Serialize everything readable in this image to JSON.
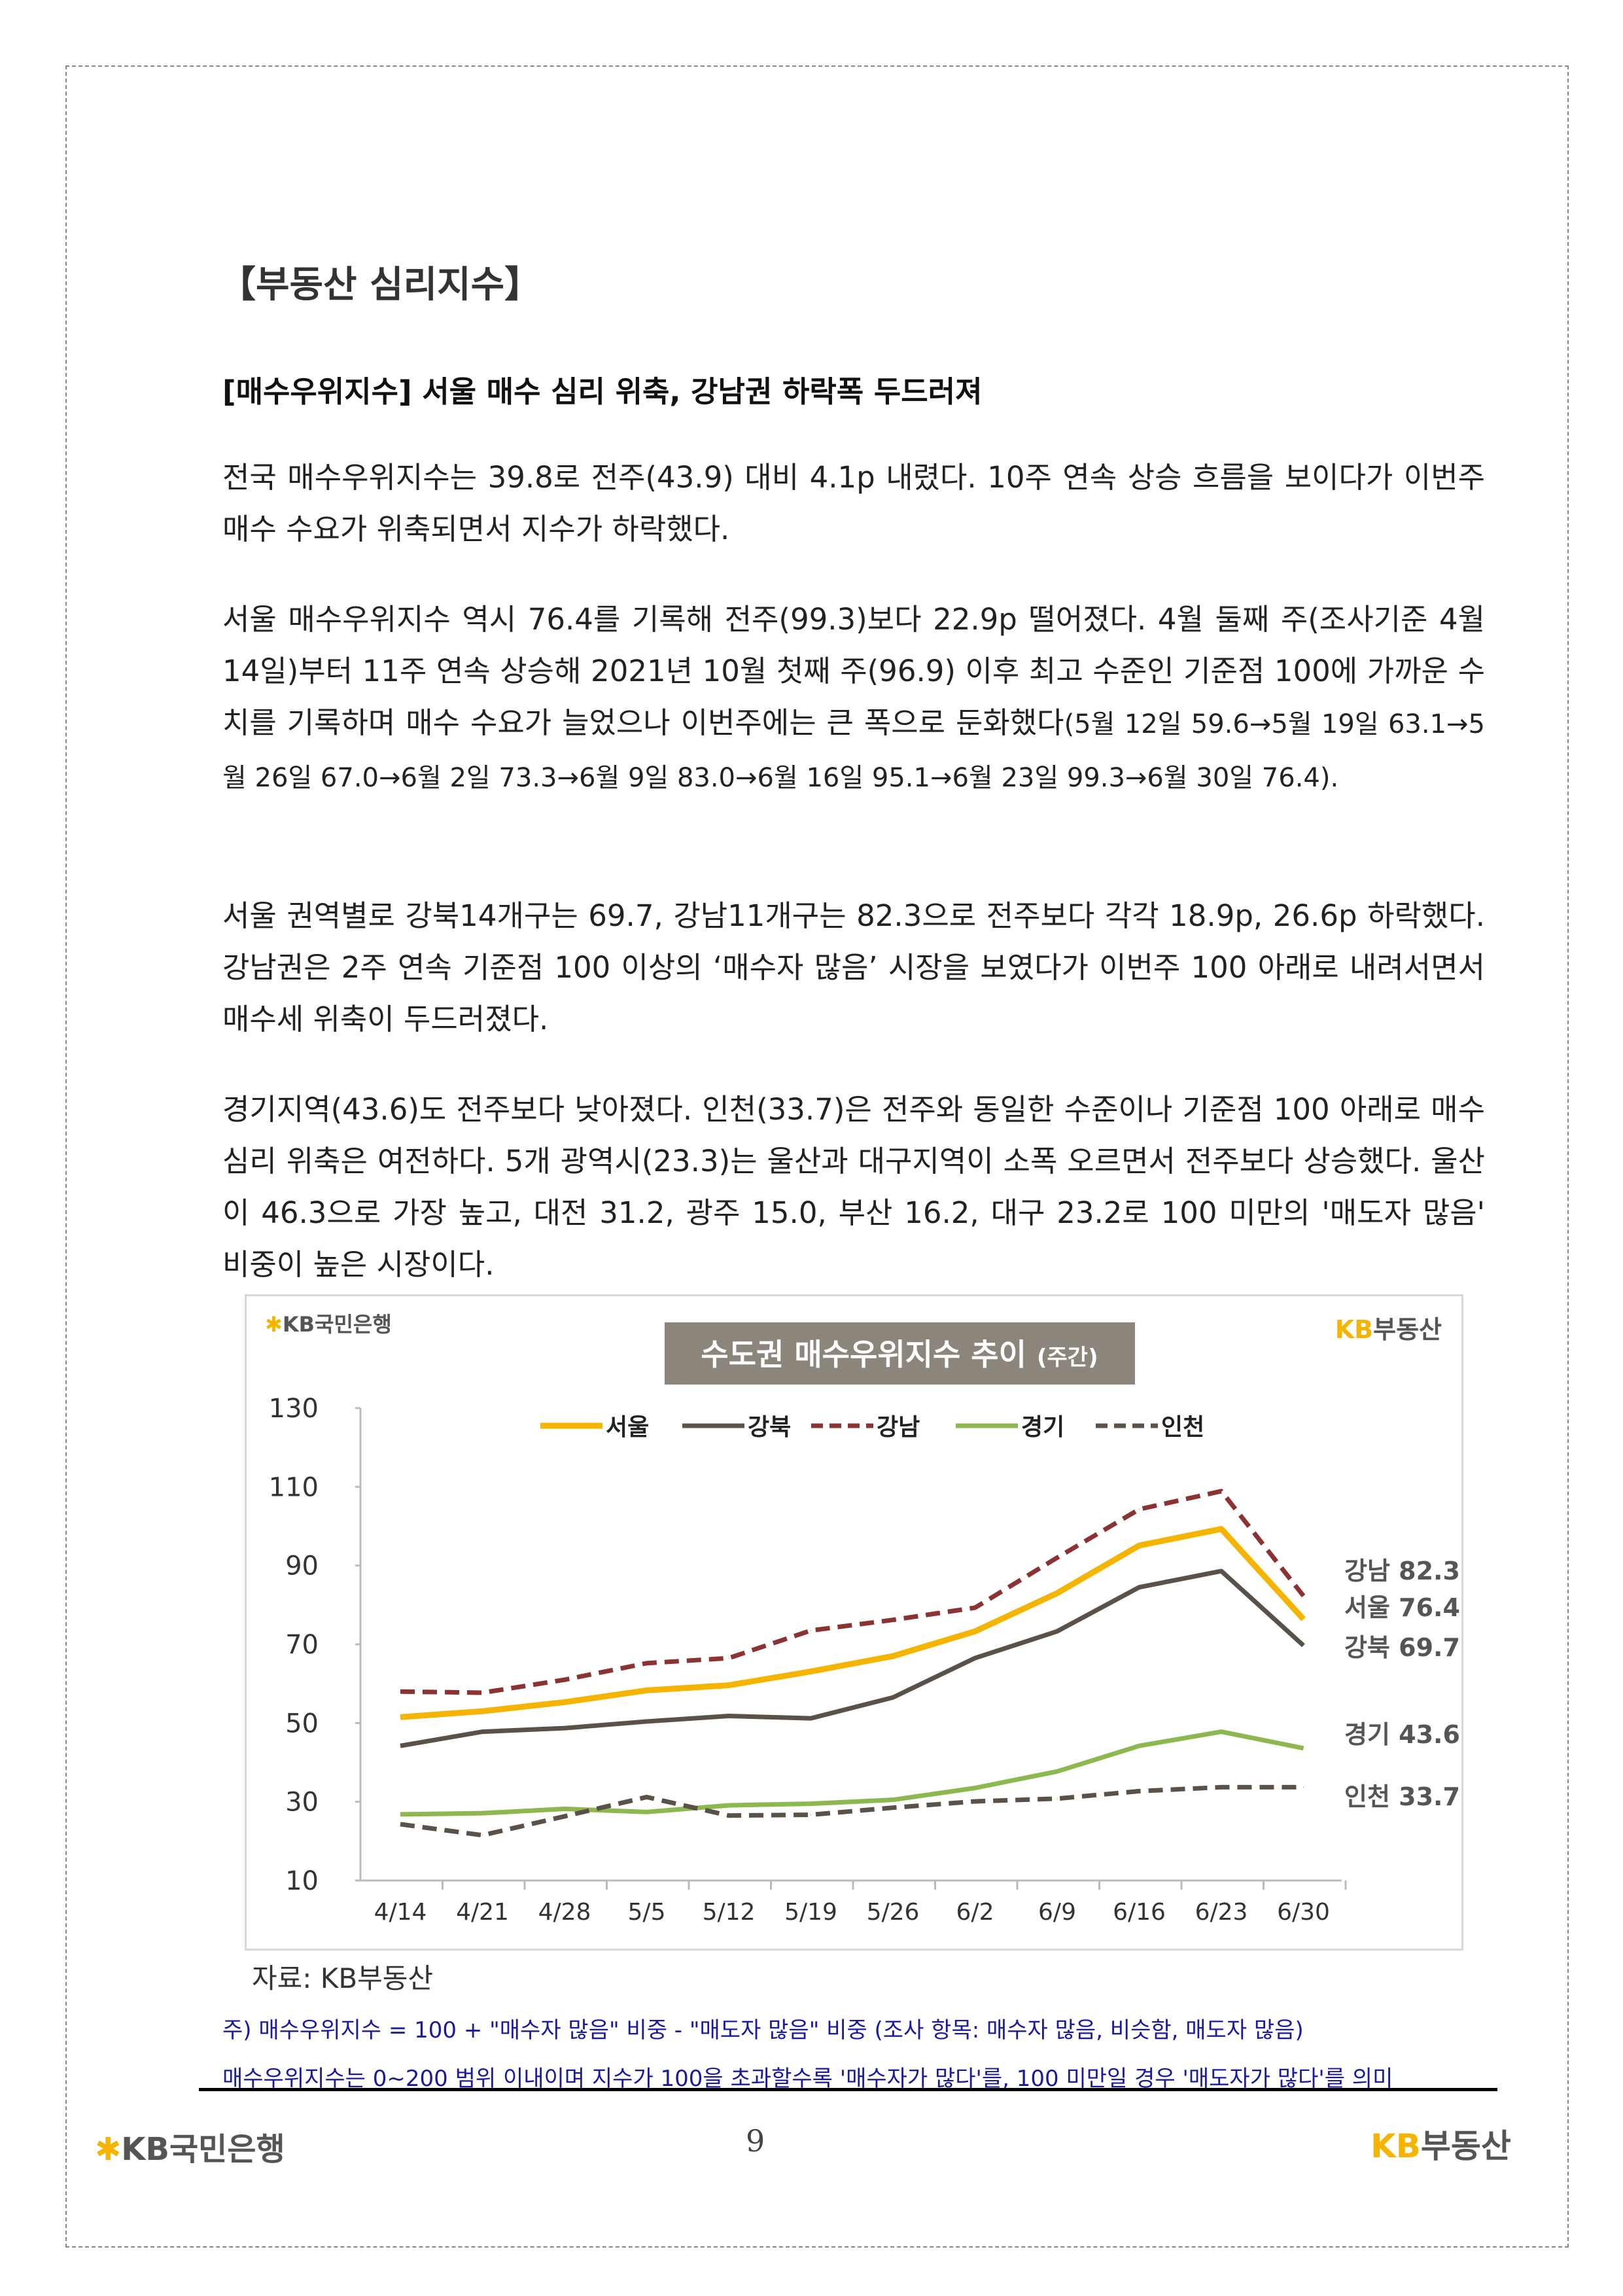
{
  "heading": "【부동산 심리지수】",
  "subheading": "[매수우위지수] 서울 매수 심리 위축, 강남권 하락폭 두드러져",
  "paragraphs": [
    "전국 매수우위지수는 39.8로 전주(43.9) 대비 4.1p 내렸다. 10주 연속 상승 흐름을 보이다가 이번주 매수 수요가 위축되면서 지수가 하락했다.",
    "서울 매수우위지수 역시 76.4를 기록해 전주(99.3)보다 22.9p 떨어졌다. 4월 둘째 주(조사기준 4월 14일)부터 11주 연속 상승해 2021년 10월 첫째 주(96.9) 이후 최고 수준인 기준점 100에 가까운 수치를 기록하며 매수 수요가 늘었으나 이번주에는 큰 폭으로 둔화했다",
    "서울 권역별로 강북14개구는 69.7, 강남11개구는 82.3으로 전주보다 각각 18.9p, 26.6p 하락했다. 강남권은 2주 연속 기준점 100 이상의 ‘매수자 많음’ 시장을 보였다가 이번주 100 아래로 내려서면서 매수세 위축이 두드러졌다.",
    "경기지역(43.6)도 전주보다 낮아졌다. 인천(33.7)은 전주와 동일한 수준이나 기준점 100 아래로 매수심리 위축은 여전하다. 5개 광역시(23.3)는 울산과 대구지역이 소폭 오르면서 전주보다 상승했다. 울산이 46.3으로 가장 높고, 대전 31.2, 광주 15.0, 부산 16.2, 대구 23.2로 100 미만의 '매도자 많음' 비중이 높은 시장이다."
  ],
  "paragraph2_detail": "(5월 12일 59.6→5월 19일 63.1→5월 26일 67.0→6월 2일 73.3→6월 9일 83.0→6월 16일 95.1→6월 23일 99.3→6월 30일 76.4).",
  "chart_data": {
    "type": "line",
    "title": "수도권 매수우위지수 추이",
    "title_suffix": "(주간)",
    "categories": [
      "4/14",
      "4/21",
      "4/28",
      "5/5",
      "5/12",
      "5/19",
      "5/26",
      "6/2",
      "6/9",
      "6/16",
      "6/23",
      "6/30"
    ],
    "ylim": [
      10,
      130
    ],
    "yticks": [
      "10",
      "30",
      "50",
      "70",
      "90",
      "110",
      "130"
    ],
    "xlabel": "",
    "ylabel": "",
    "grid": false,
    "legend_position": "top",
    "series": [
      {
        "name": "서울",
        "color": "#f5b400",
        "dash": false,
        "values": [
          51.5,
          53.0,
          55.3,
          58.3,
          59.6,
          63.1,
          67.0,
          73.3,
          83.0,
          95.1,
          99.3,
          76.4
        ],
        "end_label": "서울 76.4"
      },
      {
        "name": "강북",
        "color": "#5a5148",
        "dash": false,
        "values": [
          44.2,
          47.8,
          48.7,
          50.4,
          51.8,
          51.2,
          56.5,
          66.5,
          73.3,
          84.5,
          88.6,
          69.7
        ],
        "end_label": "강북 69.7"
      },
      {
        "name": "강남",
        "color": "#8b3232",
        "dash": true,
        "values": [
          58.0,
          57.7,
          61.0,
          65.2,
          66.5,
          73.5,
          76.2,
          79.3,
          92.0,
          104.3,
          108.9,
          82.3
        ],
        "end_label": "강남 82.3"
      },
      {
        "name": "경기",
        "color": "#8cb84f",
        "dash": false,
        "values": [
          26.8,
          27.1,
          28.2,
          27.4,
          29.1,
          29.5,
          30.5,
          33.5,
          37.7,
          44.2,
          47.8,
          43.6
        ],
        "end_label": "경기 43.6"
      },
      {
        "name": "인천",
        "color": "#5a5148",
        "dash": true,
        "values": [
          24.3,
          21.5,
          26.3,
          31.2,
          26.5,
          26.7,
          28.5,
          30.1,
          30.8,
          32.7,
          33.7,
          33.7
        ],
        "end_label": "인천 33.7"
      }
    ]
  },
  "chart_logos": {
    "left": "KB국민은행",
    "right_kb": "KB",
    "right_text": "부동산"
  },
  "source": "자료: KB부동산",
  "notes": [
    "주) 매수우위지수 = 100 + \"매수자 많음\" 비중 - \"매도자 많음\" 비중   (조사 항목: 매수자 많음, 비슷함, 매도자 많음)",
    "매수우위지수는 0~200 범위 이내이며 지수가 100을 초과할수록 '매수자가 많다'를, 100 미만일 경우 '매도자가 많다'를 의미"
  ],
  "footer": {
    "left_logo": "KB국민은행",
    "right_logo_kb": "KB",
    "right_logo_text": "부동산",
    "page_number": "9"
  }
}
